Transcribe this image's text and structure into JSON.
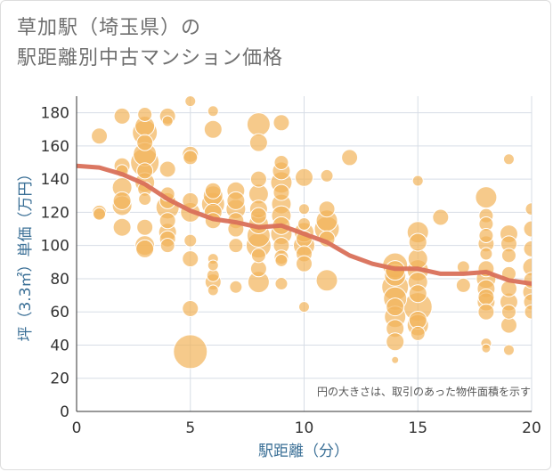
{
  "title_lines": [
    "草加駅（埼玉県）の",
    "駅距離別中古マンション価格"
  ],
  "colors": {
    "bubble": "#f2b35a",
    "line": "#d9705a",
    "grid": "#d7dde6",
    "axis_text": "#333333",
    "label_text": "#3a6f96",
    "title_text": "#6f6f6f"
  },
  "chart_data": {
    "type": "scatter",
    "title": "草加駅（埼玉県）の駅距離別中古マンション価格",
    "xlabel": "駅距離（分）",
    "ylabel": "坪（3.3㎡）単価（万円）",
    "xlim": [
      0,
      20
    ],
    "ylim": [
      0,
      190
    ],
    "xticks": [
      "0",
      "5",
      "10",
      "15",
      "20"
    ],
    "yticks": [
      "0",
      "20",
      "40",
      "60",
      "80",
      "100",
      "120",
      "140",
      "160",
      "180"
    ],
    "grid": true,
    "annotation": "円の大きさは、取引のあった物件面積を示す",
    "points": [
      {
        "x": 1,
        "y": 166,
        "s": 9
      },
      {
        "x": 1,
        "y": 120,
        "s": 8
      },
      {
        "x": 1,
        "y": 119,
        "s": 7
      },
      {
        "x": 2,
        "y": 178,
        "s": 9
      },
      {
        "x": 2,
        "y": 148,
        "s": 9
      },
      {
        "x": 2,
        "y": 145,
        "s": 7
      },
      {
        "x": 2,
        "y": 135,
        "s": 11
      },
      {
        "x": 2,
        "y": 127,
        "s": 10
      },
      {
        "x": 2,
        "y": 124,
        "s": 11
      },
      {
        "x": 2,
        "y": 111,
        "s": 10
      },
      {
        "x": 3,
        "y": 179,
        "s": 8
      },
      {
        "x": 3,
        "y": 172,
        "s": 11
      },
      {
        "x": 3,
        "y": 168,
        "s": 14
      },
      {
        "x": 3,
        "y": 162,
        "s": 9
      },
      {
        "x": 3,
        "y": 155,
        "s": 13
      },
      {
        "x": 3,
        "y": 150,
        "s": 16
      },
      {
        "x": 3,
        "y": 145,
        "s": 9
      },
      {
        "x": 3,
        "y": 138,
        "s": 11
      },
      {
        "x": 3,
        "y": 134,
        "s": 8
      },
      {
        "x": 3,
        "y": 128,
        "s": 7
      },
      {
        "x": 3,
        "y": 111,
        "s": 9
      },
      {
        "x": 3,
        "y": 100,
        "s": 11
      },
      {
        "x": 3,
        "y": 98,
        "s": 10
      },
      {
        "x": 4,
        "y": 178,
        "s": 9
      },
      {
        "x": 4,
        "y": 175,
        "s": 6
      },
      {
        "x": 4,
        "y": 146,
        "s": 9
      },
      {
        "x": 4,
        "y": 131,
        "s": 8
      },
      {
        "x": 4,
        "y": 127,
        "s": 9
      },
      {
        "x": 4,
        "y": 123,
        "s": 13
      },
      {
        "x": 4,
        "y": 115,
        "s": 9
      },
      {
        "x": 4,
        "y": 108,
        "s": 10
      },
      {
        "x": 4,
        "y": 104,
        "s": 9
      },
      {
        "x": 4,
        "y": 100,
        "s": 8
      },
      {
        "x": 5,
        "y": 187,
        "s": 6
      },
      {
        "x": 5,
        "y": 155,
        "s": 9
      },
      {
        "x": 5,
        "y": 153,
        "s": 8
      },
      {
        "x": 5,
        "y": 127,
        "s": 9
      },
      {
        "x": 5,
        "y": 120,
        "s": 11
      },
      {
        "x": 5,
        "y": 103,
        "s": 7
      },
      {
        "x": 5,
        "y": 92,
        "s": 9
      },
      {
        "x": 5,
        "y": 62,
        "s": 9
      },
      {
        "x": 5,
        "y": 36,
        "s": 19
      },
      {
        "x": 6,
        "y": 181,
        "s": 6
      },
      {
        "x": 6,
        "y": 170,
        "s": 10
      },
      {
        "x": 6,
        "y": 133,
        "s": 9
      },
      {
        "x": 6,
        "y": 130,
        "s": 11
      },
      {
        "x": 6,
        "y": 125,
        "s": 13
      },
      {
        "x": 6,
        "y": 120,
        "s": 10
      },
      {
        "x": 6,
        "y": 115,
        "s": 9
      },
      {
        "x": 6,
        "y": 92,
        "s": 6
      },
      {
        "x": 6,
        "y": 88,
        "s": 6
      },
      {
        "x": 6,
        "y": 82,
        "s": 7
      },
      {
        "x": 6,
        "y": 78,
        "s": 9
      },
      {
        "x": 6,
        "y": 73,
        "s": 6
      },
      {
        "x": 7,
        "y": 133,
        "s": 10
      },
      {
        "x": 7,
        "y": 127,
        "s": 10
      },
      {
        "x": 7,
        "y": 122,
        "s": 11
      },
      {
        "x": 7,
        "y": 115,
        "s": 9
      },
      {
        "x": 7,
        "y": 110,
        "s": 9
      },
      {
        "x": 7,
        "y": 100,
        "s": 8
      },
      {
        "x": 7,
        "y": 75,
        "s": 7
      },
      {
        "x": 8,
        "y": 173,
        "s": 13
      },
      {
        "x": 8,
        "y": 162,
        "s": 10
      },
      {
        "x": 8,
        "y": 140,
        "s": 9
      },
      {
        "x": 8,
        "y": 131,
        "s": 11
      },
      {
        "x": 8,
        "y": 122,
        "s": 10
      },
      {
        "x": 8,
        "y": 118,
        "s": 9
      },
      {
        "x": 8,
        "y": 113,
        "s": 11
      },
      {
        "x": 8,
        "y": 106,
        "s": 13
      },
      {
        "x": 8,
        "y": 100,
        "s": 14
      },
      {
        "x": 8,
        "y": 94,
        "s": 8
      },
      {
        "x": 8,
        "y": 86,
        "s": 9
      },
      {
        "x": 8,
        "y": 78,
        "s": 12
      },
      {
        "x": 9,
        "y": 174,
        "s": 9
      },
      {
        "x": 9,
        "y": 150,
        "s": 8
      },
      {
        "x": 9,
        "y": 145,
        "s": 10
      },
      {
        "x": 9,
        "y": 138,
        "s": 12
      },
      {
        "x": 9,
        "y": 132,
        "s": 9
      },
      {
        "x": 9,
        "y": 125,
        "s": 11
      },
      {
        "x": 9,
        "y": 118,
        "s": 11
      },
      {
        "x": 9,
        "y": 112,
        "s": 10
      },
      {
        "x": 9,
        "y": 107,
        "s": 12
      },
      {
        "x": 9,
        "y": 100,
        "s": 9
      },
      {
        "x": 9,
        "y": 93,
        "s": 8
      },
      {
        "x": 9,
        "y": 91,
        "s": 7
      },
      {
        "x": 9,
        "y": 77,
        "s": 7
      },
      {
        "x": 10,
        "y": 141,
        "s": 10
      },
      {
        "x": 10,
        "y": 122,
        "s": 6
      },
      {
        "x": 10,
        "y": 113,
        "s": 7
      },
      {
        "x": 10,
        "y": 108,
        "s": 11
      },
      {
        "x": 10,
        "y": 104,
        "s": 9
      },
      {
        "x": 10,
        "y": 100,
        "s": 12
      },
      {
        "x": 10,
        "y": 95,
        "s": 9
      },
      {
        "x": 10,
        "y": 89,
        "s": 9
      },
      {
        "x": 10,
        "y": 63,
        "s": 6
      },
      {
        "x": 11,
        "y": 142,
        "s": 7
      },
      {
        "x": 11,
        "y": 122,
        "s": 9
      },
      {
        "x": 11,
        "y": 115,
        "s": 12
      },
      {
        "x": 11,
        "y": 110,
        "s": 14
      },
      {
        "x": 11,
        "y": 104,
        "s": 9
      },
      {
        "x": 11,
        "y": 79,
        "s": 12
      },
      {
        "x": 12,
        "y": 153,
        "s": 9
      },
      {
        "x": 14,
        "y": 88,
        "s": 14
      },
      {
        "x": 14,
        "y": 85,
        "s": 11
      },
      {
        "x": 14,
        "y": 82,
        "s": 12
      },
      {
        "x": 14,
        "y": 75,
        "s": 15
      },
      {
        "x": 14,
        "y": 68,
        "s": 13
      },
      {
        "x": 14,
        "y": 63,
        "s": 10
      },
      {
        "x": 14,
        "y": 57,
        "s": 12
      },
      {
        "x": 14,
        "y": 50,
        "s": 10
      },
      {
        "x": 14,
        "y": 42,
        "s": 10
      },
      {
        "x": 14,
        "y": 31,
        "s": 4
      },
      {
        "x": 15,
        "y": 139,
        "s": 6
      },
      {
        "x": 15,
        "y": 108,
        "s": 12
      },
      {
        "x": 15,
        "y": 102,
        "s": 10
      },
      {
        "x": 15,
        "y": 92,
        "s": 11
      },
      {
        "x": 15,
        "y": 85,
        "s": 12
      },
      {
        "x": 15,
        "y": 78,
        "s": 11
      },
      {
        "x": 15,
        "y": 71,
        "s": 10
      },
      {
        "x": 15,
        "y": 63,
        "s": 16
      },
      {
        "x": 15,
        "y": 55,
        "s": 10
      },
      {
        "x": 15,
        "y": 52,
        "s": 12
      },
      {
        "x": 15,
        "y": 47,
        "s": 8
      },
      {
        "x": 16,
        "y": 117,
        "s": 9
      },
      {
        "x": 17,
        "y": 87,
        "s": 7
      },
      {
        "x": 17,
        "y": 76,
        "s": 8
      },
      {
        "x": 18,
        "y": 129,
        "s": 12
      },
      {
        "x": 18,
        "y": 118,
        "s": 8
      },
      {
        "x": 18,
        "y": 113,
        "s": 8
      },
      {
        "x": 18,
        "y": 106,
        "s": 8
      },
      {
        "x": 18,
        "y": 101,
        "s": 9
      },
      {
        "x": 18,
        "y": 95,
        "s": 7
      },
      {
        "x": 18,
        "y": 86,
        "s": 9
      },
      {
        "x": 18,
        "y": 80,
        "s": 11
      },
      {
        "x": 18,
        "y": 74,
        "s": 10
      },
      {
        "x": 18,
        "y": 69,
        "s": 9
      },
      {
        "x": 18,
        "y": 66,
        "s": 10
      },
      {
        "x": 18,
        "y": 60,
        "s": 9
      },
      {
        "x": 18,
        "y": 41,
        "s": 6
      },
      {
        "x": 18,
        "y": 38,
        "s": 5
      },
      {
        "x": 19,
        "y": 152,
        "s": 6
      },
      {
        "x": 19,
        "y": 107,
        "s": 10
      },
      {
        "x": 19,
        "y": 101,
        "s": 9
      },
      {
        "x": 19,
        "y": 94,
        "s": 8
      },
      {
        "x": 19,
        "y": 83,
        "s": 8
      },
      {
        "x": 19,
        "y": 74,
        "s": 9
      },
      {
        "x": 19,
        "y": 66,
        "s": 10
      },
      {
        "x": 19,
        "y": 60,
        "s": 8
      },
      {
        "x": 19,
        "y": 52,
        "s": 9
      },
      {
        "x": 19,
        "y": 37,
        "s": 6
      },
      {
        "x": 20,
        "y": 122,
        "s": 7
      },
      {
        "x": 20,
        "y": 110,
        "s": 9
      },
      {
        "x": 20,
        "y": 98,
        "s": 9
      },
      {
        "x": 20,
        "y": 87,
        "s": 10
      },
      {
        "x": 20,
        "y": 79,
        "s": 9
      },
      {
        "x": 20,
        "y": 72,
        "s": 10
      },
      {
        "x": 20,
        "y": 66,
        "s": 9
      },
      {
        "x": 20,
        "y": 60,
        "s": 8
      }
    ],
    "trend": {
      "x": [
        0,
        1,
        2,
        3,
        4,
        5,
        6,
        7,
        8,
        9,
        10,
        11,
        12,
        13,
        14,
        15,
        16,
        17,
        18,
        19,
        20
      ],
      "y": [
        148,
        147,
        143,
        137,
        128,
        121,
        116,
        114,
        111,
        112,
        107,
        102,
        94,
        89,
        86,
        86,
        83,
        83,
        84,
        79,
        77
      ]
    }
  }
}
